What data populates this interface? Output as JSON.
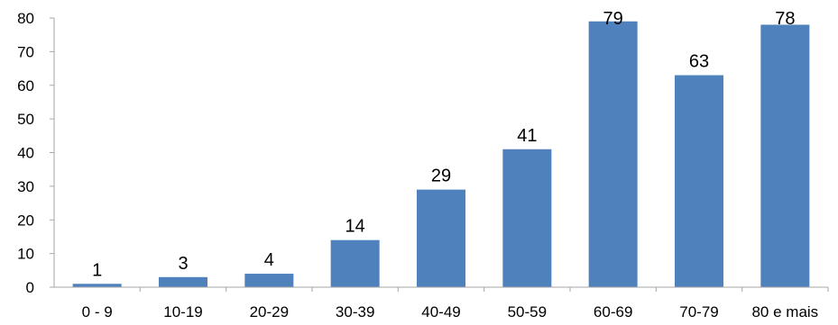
{
  "chart_data": {
    "type": "bar",
    "categories": [
      "0 - 9",
      "10-19",
      "20-29",
      "30-39",
      "40-49",
      "50-59",
      "60-69",
      "70-79",
      "80 e mais"
    ],
    "values": [
      1,
      3,
      4,
      14,
      29,
      41,
      79,
      63,
      78
    ],
    "title": "",
    "xlabel": "",
    "ylabel": "",
    "ylim": [
      0,
      80
    ],
    "yticks": [
      0,
      10,
      20,
      30,
      40,
      50,
      60,
      70,
      80
    ],
    "grid": false,
    "legend": "none",
    "data_labels": true,
    "bar_color": "#4F81BD",
    "axis_color": "#A6A6A6"
  }
}
